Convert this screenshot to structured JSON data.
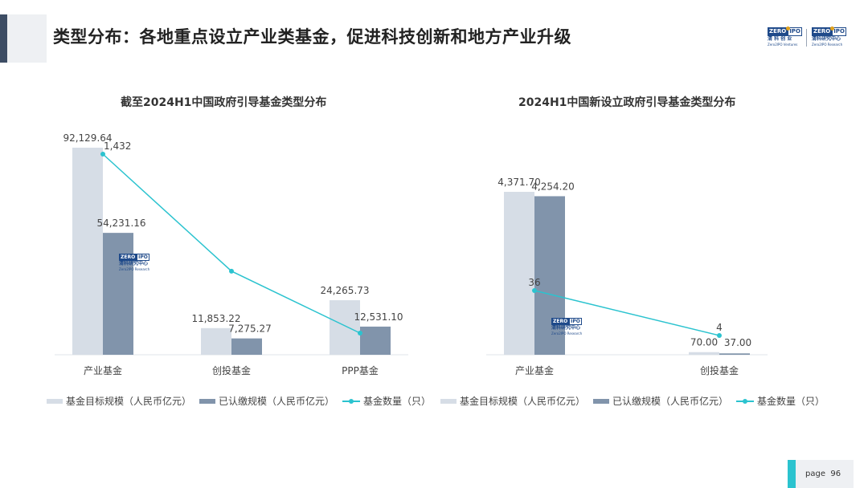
{
  "page": {
    "title": "类型分布：各地重点设立产业类基金，促进科技创新和地方产业升级",
    "page_label": "page",
    "page_number": "96"
  },
  "logos": {
    "left": {
      "zero": "ZERO",
      "ipo": "IPO",
      "cn": "清 科 创 业",
      "en": "Zero2IPO Ventures"
    },
    "right": {
      "zero": "ZERO",
      "ipo": "IPO",
      "cn": "清科研究中心",
      "en": "Zero2IPO Research"
    }
  },
  "watermark": {
    "zero": "ZERO",
    "ipo": "IPO",
    "cn": "清科研究中心",
    "en": "Zero2IPO Research"
  },
  "colors": {
    "target_bar": "#d6dde6",
    "paid_bar": "#8194ab",
    "count_line": "#2bc3cf",
    "accent": "#3d4d64"
  },
  "chart_data": [
    {
      "type": "bar",
      "title": "截至2024H1中国政府引导基金类型分布",
      "categories": [
        "产业基金",
        "创投基金",
        "PPP基金"
      ],
      "series": [
        {
          "name": "基金目标规模（人民币亿元）",
          "kind": "bar",
          "values": [
            92129.64,
            11853.22,
            24265.73
          ],
          "labels": [
            "92,129.64",
            "11,853.22",
            "24,265.73"
          ]
        },
        {
          "name": "已认缴规模（人民币亿元）",
          "kind": "bar",
          "values": [
            54231.16,
            7275.27,
            12531.1
          ],
          "labels": [
            "54,231.16",
            "7,275.27",
            "12,531.10"
          ]
        },
        {
          "name": "基金数量（只）",
          "kind": "line",
          "values": [
            1432,
            610,
            175
          ],
          "labels": [
            "1,432",
            "",
            ""
          ]
        }
      ],
      "legend_position": "bottom",
      "grid": false
    },
    {
      "type": "bar",
      "title": "2024H1中国新设立政府引导基金类型分布",
      "categories": [
        "产业基金",
        "创投基金"
      ],
      "series": [
        {
          "name": "基金目标规模（人民币亿元）",
          "kind": "bar",
          "values": [
            4371.7,
            70.0
          ],
          "labels": [
            "4,371.70",
            "70.00"
          ]
        },
        {
          "name": "已认缴规模（人民币亿元）",
          "kind": "bar",
          "values": [
            4254.2,
            37.0
          ],
          "labels": [
            "4,254.20",
            "37.00"
          ]
        },
        {
          "name": "基金数量（只）",
          "kind": "line",
          "values": [
            36,
            4
          ],
          "labels": [
            "36",
            "4"
          ]
        }
      ],
      "legend_position": "bottom",
      "grid": false
    }
  ]
}
